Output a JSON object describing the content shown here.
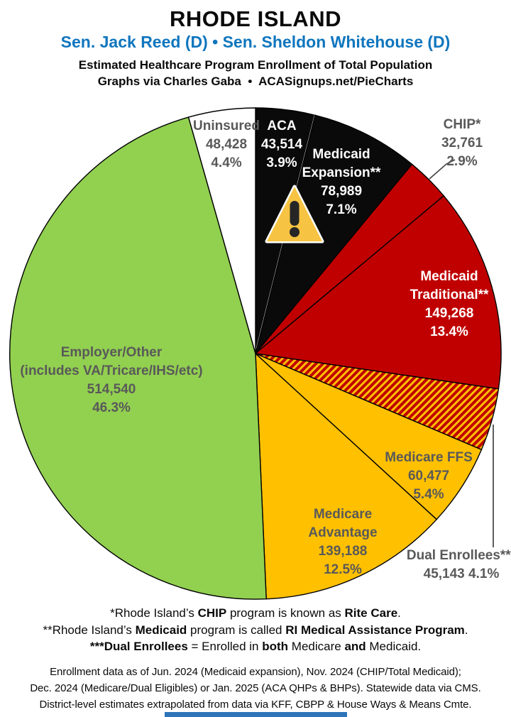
{
  "header": {
    "title": "RHODE ISLAND",
    "senators": "Sen. Jack Reed (D) • Sen. Sheldon Whitehouse (D)",
    "subtitle": "Estimated Healthcare Program Enrollment of Total Population",
    "credit": "Graphs via Charles Gaba  •  ACASignups.net/PieCharts"
  },
  "chart_data": {
    "type": "pie",
    "title": "Estimated Healthcare Program Enrollment of Total Population",
    "start_angle_deg": 0,
    "direction": "clockwise",
    "slices": [
      {
        "name": "ACA",
        "value": 43514,
        "pct": 3.9,
        "color": "#0a0a0a",
        "white_divider_after": true,
        "label_lines": [
          "ACA",
          "43,514",
          "3.9%"
        ]
      },
      {
        "name": "Medicaid Expansion**",
        "value": 78989,
        "pct": 7.1,
        "color": "#0a0a0a",
        "label_lines": [
          "Medicaid",
          "Expansion**",
          "78,989",
          "7.1%"
        ]
      },
      {
        "name": "CHIP*",
        "value": 32761,
        "pct": 2.9,
        "color": "#c00000",
        "label_lines": [
          "CHIP*",
          "32,761",
          "2.9%"
        ]
      },
      {
        "name": "Medicaid Traditional**",
        "value": 149268,
        "pct": 13.4,
        "color": "#c00000",
        "label_lines": [
          "Medicaid",
          "Traditional**",
          "149,268",
          "13.4%"
        ]
      },
      {
        "name": "Dual Enrollees***",
        "value": 45143,
        "pct": 4.1,
        "color": "hatch",
        "label_lines": [
          "Dual Enrollees***",
          "45,143 4.1%"
        ]
      },
      {
        "name": "Medicare FFS",
        "value": 60477,
        "pct": 5.4,
        "color": "#ffc000",
        "label_lines": [
          "Medicare FFS",
          "60,477",
          "5.4%"
        ]
      },
      {
        "name": "Medicare Advantage",
        "value": 139188,
        "pct": 12.5,
        "color": "#ffc000",
        "label_lines": [
          "Medicare",
          "Advantage",
          "139,188",
          "12.5%"
        ]
      },
      {
        "name": "Employer/Other",
        "value": 514540,
        "pct": 46.3,
        "color": "#92d050",
        "label_lines": [
          "Employer/Other",
          "(includes VA/Tricare/IHS/etc)",
          "514,540",
          "46.3%"
        ]
      },
      {
        "name": "Uninsured",
        "value": 48428,
        "pct": 4.4,
        "color": "#ffffff",
        "label_lines": [
          "Uninsured",
          "48,428",
          "4.4%"
        ]
      }
    ],
    "hatch_colors": {
      "base": "#c00000",
      "stripe": "#ffc000"
    }
  },
  "footnotes": [
    {
      "segments": [
        {
          "t": "*Rhode Island’s ",
          "b": false
        },
        {
          "t": "CHIP",
          "b": true
        },
        {
          "t": " program is known as ",
          "b": false
        },
        {
          "t": "Rite Care",
          "b": true
        },
        {
          "t": ".",
          "b": false
        }
      ]
    },
    {
      "segments": [
        {
          "t": "**Rhode Island’s ",
          "b": false
        },
        {
          "t": "Medicaid",
          "b": true
        },
        {
          "t": " program is called ",
          "b": false
        },
        {
          "t": "RI Medical Assistance Program",
          "b": true
        },
        {
          "t": ".",
          "b": false
        }
      ]
    },
    {
      "segments": [
        {
          "t": "***Dual Enrollees",
          "b": true
        },
        {
          "t": " = Enrolled in ",
          "b": false
        },
        {
          "t": "both",
          "b": true
        },
        {
          "t": " Medicare ",
          "b": false
        },
        {
          "t": "and",
          "b": true
        },
        {
          "t": " Medicaid.",
          "b": false
        }
      ]
    }
  ],
  "disclaimer_lines": [
    "Enrollment data as of Jun. 2024 (Medicaid expansion), Nov. 2024 (CHIP/Total Medicaid);",
    "Dec. 2024 (Medicare/Dual Eligibles) or Jan. 2025 (ACA QHPs & BHPs). Statewide data via CMS.",
    "District-level estimates extrapolated from data via KFF, CBPP & House Ways & Means Cmte.",
    "Graphs via Charles Gaba  •  ACASignups.net/PieCharts"
  ],
  "ui": {
    "accent_blue": "#1076be",
    "label_gray": "#595959",
    "bottom_bar_color": "#2f74b8",
    "warning_icon": {
      "fill": "#f7c342",
      "border": "#ffffff",
      "mark": "#262626"
    }
  }
}
